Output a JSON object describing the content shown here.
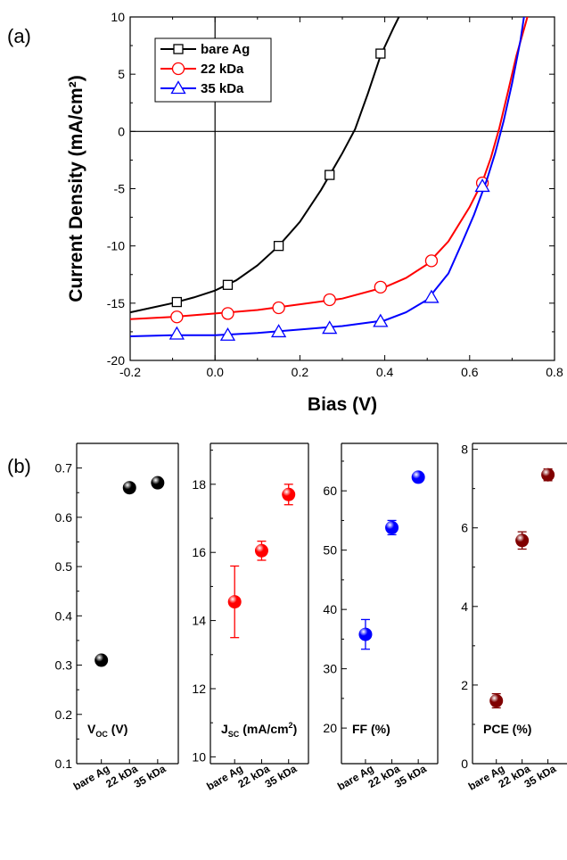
{
  "chart_data": [
    {
      "panel": "(a)",
      "type": "line",
      "xlabel": "Bias (V)",
      "ylabel": "Current Density (mA/cm²)",
      "xlim": [
        -0.2,
        0.8
      ],
      "ylim": [
        -20,
        10
      ],
      "xticks": [
        "-0.2",
        "0.0",
        "0.2",
        "0.4",
        "0.6",
        "0.8"
      ],
      "yticks": [
        "-20",
        "-15",
        "-10",
        "-5",
        "0",
        "5",
        "10"
      ],
      "legend_position": "top-left",
      "series": [
        {
          "name": "bare Ag",
          "color": "#000000",
          "marker": "square",
          "x": [
            -0.2,
            -0.15,
            -0.1,
            -0.05,
            0.0,
            0.05,
            0.1,
            0.15,
            0.2,
            0.25,
            0.3,
            0.33,
            0.36,
            0.39,
            0.42,
            0.44
          ],
          "y": [
            -15.8,
            -15.4,
            -15.0,
            -14.5,
            -13.9,
            -13.0,
            -11.7,
            -10.0,
            -7.9,
            -5.1,
            -1.9,
            0.2,
            3.3,
            6.6,
            9.0,
            10.5
          ],
          "marker_x": [
            -0.09,
            0.03,
            0.15,
            0.27,
            0.39
          ],
          "marker_y": [
            -14.9,
            -13.4,
            -10.0,
            -3.8,
            6.8
          ]
        },
        {
          "name": "22 kDa",
          "color": "#ff0000",
          "marker": "circle",
          "x": [
            -0.2,
            -0.1,
            0.0,
            0.1,
            0.2,
            0.3,
            0.4,
            0.45,
            0.5,
            0.55,
            0.6,
            0.63,
            0.65,
            0.67,
            0.69,
            0.71,
            0.73,
            0.74
          ],
          "y": [
            -16.4,
            -16.2,
            -15.9,
            -15.6,
            -15.1,
            -14.6,
            -13.6,
            -12.8,
            -11.6,
            -9.6,
            -6.6,
            -4.4,
            -2.3,
            0.3,
            3.4,
            6.6,
            9.2,
            10.5
          ],
          "marker_x": [
            -0.09,
            0.03,
            0.15,
            0.27,
            0.39,
            0.51,
            0.63
          ],
          "marker_y": [
            -16.2,
            -15.9,
            -15.4,
            -14.7,
            -13.6,
            -11.3,
            -4.5
          ]
        },
        {
          "name": "35 kDa",
          "color": "#0000ff",
          "marker": "triangle",
          "x": [
            -0.2,
            -0.1,
            0.0,
            0.1,
            0.2,
            0.3,
            0.4,
            0.45,
            0.5,
            0.55,
            0.58,
            0.61,
            0.64,
            0.66,
            0.68,
            0.7,
            0.72,
            0.73
          ],
          "y": [
            -17.9,
            -17.8,
            -17.8,
            -17.6,
            -17.3,
            -17.0,
            -16.5,
            -15.8,
            -14.7,
            -12.4,
            -9.9,
            -7.3,
            -4.3,
            -1.9,
            0.9,
            4.2,
            8.0,
            10.5
          ],
          "marker_x": [
            -0.09,
            0.03,
            0.15,
            0.27,
            0.39,
            0.51,
            0.63
          ],
          "marker_y": [
            -17.7,
            -17.8,
            -17.5,
            -17.2,
            -16.6,
            -14.5,
            -4.8
          ]
        }
      ]
    },
    {
      "panel": "(b)",
      "type": "scatter",
      "categories": [
        "bare Ag",
        "22 kDa",
        "35 kDa"
      ],
      "subplots": [
        {
          "label_main": "V",
          "label_sub": "OC",
          "label_rest": " (V)",
          "color": "#000000",
          "ylim": [
            0.1,
            0.75
          ],
          "yticks": [
            0.1,
            0.2,
            0.3,
            0.4,
            0.5,
            0.6,
            0.7
          ],
          "ytick_labels": [
            "0.1",
            "0.2",
            "0.3",
            "0.4",
            "0.5",
            "0.6",
            "0.7"
          ],
          "values": [
            0.31,
            0.66,
            0.67
          ],
          "errors": [
            0,
            0,
            0
          ]
        },
        {
          "label_main": "J",
          "label_sub": "SC",
          "label_rest": " (mA/cm",
          "label_sup": "2",
          "label_end": ")",
          "color": "#ff0000",
          "ylim": [
            9.8,
            19.2
          ],
          "yticks": [
            10,
            12,
            14,
            16,
            18
          ],
          "ytick_labels": [
            "10",
            "12",
            "14",
            "16",
            "18"
          ],
          "values": [
            14.55,
            16.05,
            17.7
          ],
          "errors": [
            1.05,
            0.28,
            0.3
          ]
        },
        {
          "label_main": "FF (%)",
          "color": "#0000ff",
          "ylim": [
            14,
            68
          ],
          "yticks": [
            20,
            30,
            40,
            50,
            60
          ],
          "ytick_labels": [
            "20",
            "30",
            "40",
            "50",
            "60"
          ],
          "values": [
            35.8,
            53.8,
            62.3
          ],
          "errors": [
            2.5,
            1.2,
            0
          ]
        },
        {
          "label_main": "PCE (%)",
          "color": "#800000",
          "ylim": [
            0,
            8.15
          ],
          "yticks": [
            0,
            2,
            4,
            6,
            8
          ],
          "ytick_labels": [
            "0",
            "2",
            "4",
            "6",
            "8"
          ],
          "values": [
            1.6,
            5.68,
            7.35
          ],
          "errors": [
            0.18,
            0.22,
            0.15
          ]
        }
      ]
    }
  ]
}
